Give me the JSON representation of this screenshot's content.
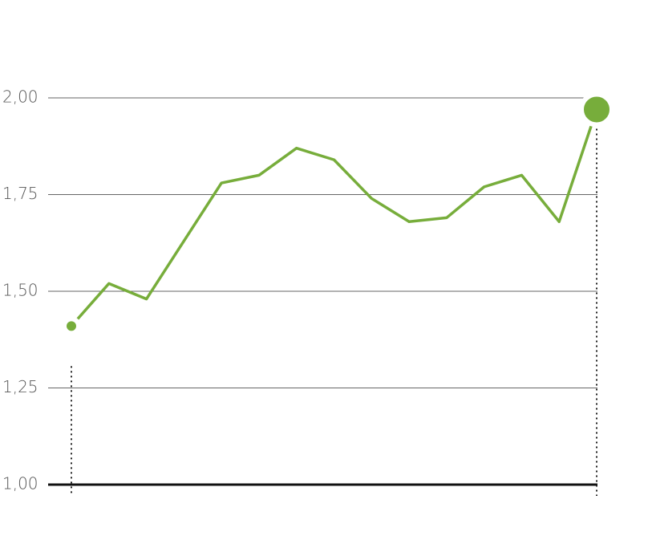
{
  "chart_data": {
    "type": "line",
    "categories": [
      null,
      null,
      null,
      null,
      null,
      null,
      null,
      null,
      null,
      null,
      null,
      null,
      null,
      null,
      null
    ],
    "series": [
      {
        "color": "#77ad3b",
        "values": [
          1.41,
          1.52,
          1.48,
          1.63,
          1.78,
          1.8,
          1.87,
          1.84,
          1.74,
          1.68,
          1.69,
          1.77,
          1.8,
          1.68,
          1.97
        ]
      }
    ],
    "ylim": [
      1,
      2
    ],
    "yticks": [
      {
        "value": 1,
        "label": "1,00"
      },
      {
        "value": 1.25,
        "label": "1,25"
      },
      {
        "value": 1.5,
        "label": "1,50"
      },
      {
        "value": 1.75,
        "label": "1,75"
      },
      {
        "value": 2,
        "label": "2,00"
      }
    ],
    "grid": true
  }
}
